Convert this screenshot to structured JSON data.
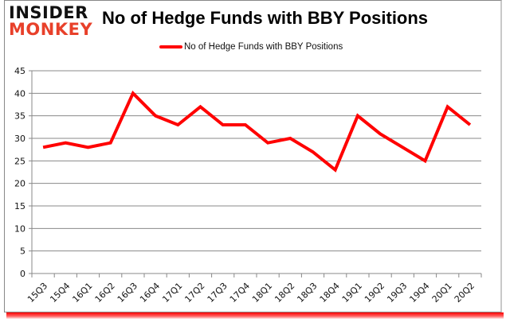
{
  "logo": {
    "line1": "INSIDER",
    "line2": "MONKEY"
  },
  "chart_data": {
    "type": "line",
    "title": "No of Hedge Funds with BBY Positions",
    "xlabel": "",
    "ylabel": "",
    "categories": [
      "15Q3",
      "15Q4",
      "16Q1",
      "16Q2",
      "16Q3",
      "16Q4",
      "17Q1",
      "17Q2",
      "17Q3",
      "17Q4",
      "18Q1",
      "18Q2",
      "18Q3",
      "18Q4",
      "19Q1",
      "19Q2",
      "19Q3",
      "19Q4",
      "20Q1",
      "20Q2"
    ],
    "series": [
      {
        "name": "No of Hedge Funds with BBY Positions",
        "color": "#ff0000",
        "values": [
          28,
          29,
          28,
          29,
          40,
          35,
          33,
          37,
          33,
          33,
          29,
          30,
          27,
          23,
          35,
          31,
          28,
          25,
          37,
          33
        ]
      }
    ],
    "ylim": [
      0,
      45
    ],
    "yticks": [
      0,
      5,
      10,
      15,
      20,
      25,
      30,
      35,
      40,
      45
    ],
    "grid": true,
    "legend_position": "top"
  }
}
